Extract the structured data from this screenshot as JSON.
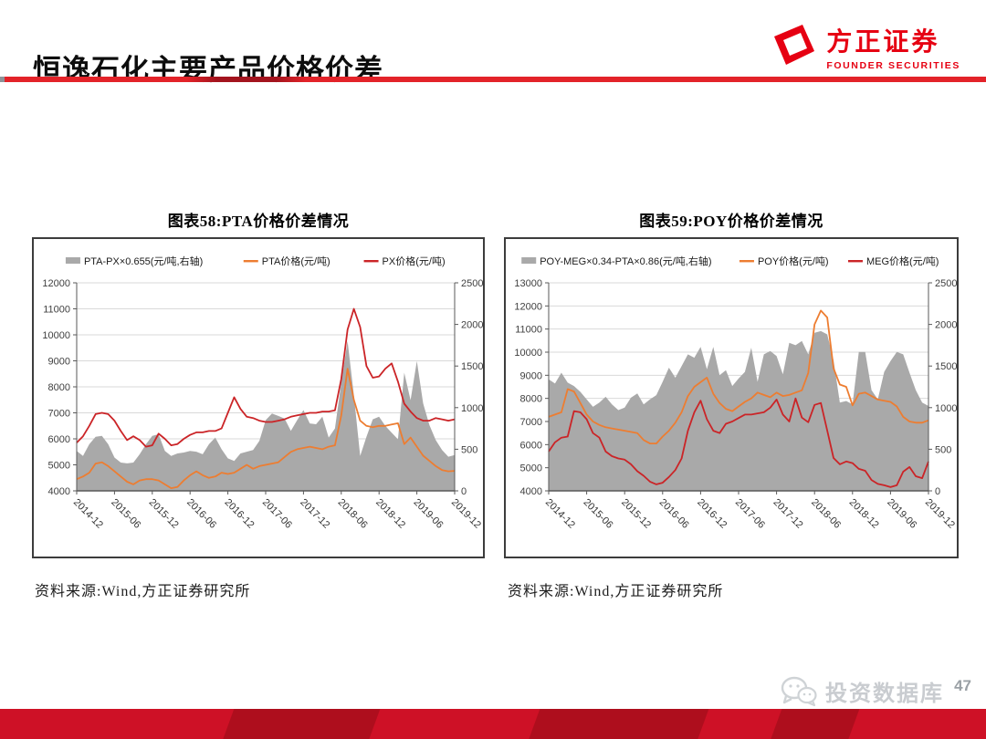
{
  "page": {
    "title": "恒逸石化主要产品价格价差",
    "logo": {
      "name": "方正证券",
      "sub": "FOUNDER SECURITIES"
    },
    "watermark": "投资数据库",
    "page_number": "47"
  },
  "colors": {
    "accent_red": "#E32329",
    "rule_dark_red": "#A3141E",
    "brand_red": "#E60012",
    "band_bright": "#CE1126",
    "band_dark": "#AE0E1D",
    "area_gray": "#A9A9A9",
    "line_orange": "#ED7D31",
    "line_red": "#CB2427",
    "watermark_gray": "#C9CCD0"
  },
  "icons": [
    "founder-logo-icon",
    "wechat-icon"
  ],
  "chart_data": [
    {
      "type": "area+line",
      "title": "图表58:PTA价格价差情况",
      "source": "资料来源:Wind,方正证券研究所",
      "legend_position": "top",
      "grid": true,
      "x_tick_labels": [
        "2014-12",
        "2015-06",
        "2015-12",
        "2016-06",
        "2016-12",
        "2017-06",
        "2017-12",
        "2018-06",
        "2018-12",
        "2019-06",
        "2019-12"
      ],
      "left_axis": {
        "min": 4000,
        "max": 12000,
        "step": 1000
      },
      "right_axis": {
        "min": 0,
        "max": 2500,
        "step": 500
      },
      "series": [
        {
          "name": "PTA-PX×0.655(元/吨,右轴)",
          "type": "area",
          "axis": "right",
          "color": "#A9A9A9",
          "values": [
            480,
            420,
            560,
            650,
            660,
            560,
            400,
            340,
            330,
            340,
            440,
            560,
            660,
            680,
            480,
            420,
            450,
            460,
            480,
            470,
            440,
            560,
            640,
            500,
            390,
            360,
            450,
            470,
            490,
            600,
            850,
            930,
            900,
            870,
            720,
            850,
            970,
            810,
            800,
            890,
            640,
            750,
            1300,
            1800,
            1150,
            420,
            650,
            860,
            890,
            780,
            700,
            620,
            1420,
            1090,
            1560,
            1050,
            790,
            610,
            490,
            410,
            430
          ]
        },
        {
          "name": "PTA价格(元/吨)",
          "type": "line",
          "axis": "left",
          "color": "#ED7D31",
          "values": [
            4450,
            4550,
            4700,
            5050,
            5100,
            4950,
            4750,
            4550,
            4350,
            4250,
            4400,
            4450,
            4450,
            4400,
            4250,
            4100,
            4150,
            4400,
            4600,
            4750,
            4600,
            4500,
            4550,
            4700,
            4650,
            4700,
            4850,
            5000,
            4850,
            4950,
            5000,
            5050,
            5100,
            5300,
            5500,
            5600,
            5650,
            5700,
            5650,
            5600,
            5700,
            5750,
            6900,
            8700,
            7500,
            6700,
            6500,
            6450,
            6500,
            6500,
            6550,
            6600,
            5800,
            6050,
            5700,
            5350,
            5150,
            4950,
            4800,
            4750,
            4770
          ]
        },
        {
          "name": "PX价格(元/吨)",
          "type": "line",
          "axis": "left",
          "color": "#CB2427",
          "values": [
            5850,
            6100,
            6500,
            6950,
            7000,
            6950,
            6700,
            6300,
            5950,
            6100,
            5950,
            5700,
            5750,
            6200,
            6000,
            5750,
            5800,
            6000,
            6150,
            6250,
            6250,
            6300,
            6300,
            6400,
            7000,
            7600,
            7150,
            6850,
            6800,
            6700,
            6650,
            6650,
            6700,
            6750,
            6850,
            6900,
            6950,
            7000,
            7000,
            7050,
            7050,
            7100,
            8300,
            10200,
            11000,
            10300,
            8800,
            8350,
            8400,
            8700,
            8900,
            8200,
            7350,
            7050,
            6800,
            6700,
            6700,
            6800,
            6750,
            6700,
            6750
          ]
        }
      ]
    },
    {
      "type": "area+line",
      "title": "图表59:POY价格价差情况",
      "source": "资料来源:Wind,方正证券研究所",
      "legend_position": "top",
      "grid": true,
      "x_tick_labels": [
        "2014-12",
        "2015-06",
        "2015-12",
        "2016-06",
        "2016-12",
        "2017-06",
        "2017-12",
        "2018-06",
        "2018-12",
        "2019-06",
        "2019-12"
      ],
      "left_axis": {
        "min": 4000,
        "max": 13000,
        "step": 1000
      },
      "right_axis": {
        "min": 0,
        "max": 2500,
        "step": 500
      },
      "series": [
        {
          "name": "POY-MEG×0.34-PTA×0.86(元/吨,右轴)",
          "type": "area",
          "axis": "right",
          "color": "#A9A9A9",
          "values": [
            1340,
            1290,
            1420,
            1300,
            1260,
            1190,
            1100,
            1010,
            1060,
            1130,
            1040,
            970,
            1000,
            1120,
            1170,
            1040,
            1100,
            1150,
            1310,
            1480,
            1360,
            1500,
            1640,
            1600,
            1730,
            1460,
            1730,
            1390,
            1450,
            1260,
            1350,
            1430,
            1720,
            1310,
            1640,
            1680,
            1620,
            1400,
            1780,
            1750,
            1800,
            1640,
            1900,
            1920,
            1880,
            1570,
            1060,
            1080,
            1040,
            1670,
            1670,
            1210,
            1100,
            1430,
            1560,
            1670,
            1640,
            1420,
            1210,
            1060,
            1020
          ]
        },
        {
          "name": "POY价格(元/吨)",
          "type": "line",
          "axis": "left",
          "color": "#ED7D31",
          "values": [
            7200,
            7300,
            7400,
            8400,
            8300,
            7800,
            7300,
            7000,
            6850,
            6750,
            6700,
            6650,
            6600,
            6550,
            6500,
            6200,
            6050,
            6050,
            6350,
            6600,
            6950,
            7400,
            8100,
            8500,
            8700,
            8900,
            8200,
            7800,
            7550,
            7450,
            7650,
            7850,
            8000,
            8250,
            8150,
            8050,
            8250,
            8100,
            8150,
            8250,
            8350,
            9100,
            11200,
            11800,
            11500,
            9300,
            8600,
            8500,
            7700,
            8200,
            8250,
            8100,
            7950,
            7900,
            7850,
            7650,
            7200,
            7000,
            6950,
            6950,
            7050
          ]
        },
        {
          "name": "MEG价格(元/吨)",
          "type": "line",
          "axis": "left",
          "color": "#CB2427",
          "values": [
            5700,
            6100,
            6300,
            6350,
            7450,
            7400,
            7100,
            6500,
            6300,
            5700,
            5500,
            5400,
            5350,
            5150,
            4850,
            4650,
            4400,
            4280,
            4350,
            4600,
            4900,
            5400,
            6600,
            7400,
            7900,
            7100,
            6600,
            6500,
            6900,
            7000,
            7150,
            7300,
            7300,
            7350,
            7400,
            7600,
            7950,
            7300,
            7000,
            8000,
            7170,
            6970,
            7720,
            7800,
            6610,
            5420,
            5150,
            5270,
            5200,
            4950,
            4870,
            4470,
            4300,
            4240,
            4160,
            4240,
            4830,
            5030,
            4630,
            4550,
            5270
          ]
        }
      ]
    }
  ]
}
